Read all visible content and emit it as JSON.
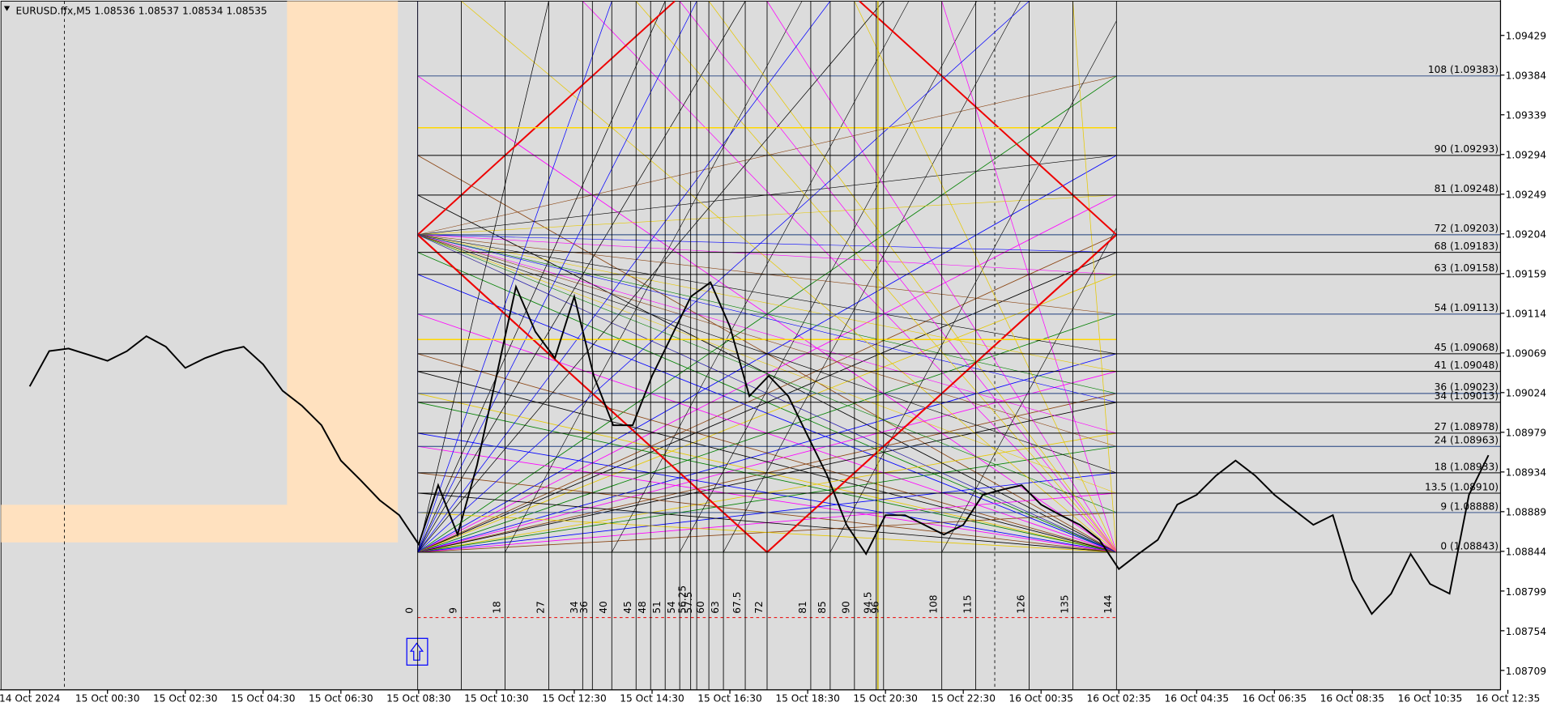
{
  "chart_data": {
    "type": "line",
    "title": "EURUSD.ffx,M5  1.08536 1.08537 1.08534 1.08535",
    "categories": [
      "14 Oct 2024",
      null,
      null,
      null,
      "15 Oct 00:30",
      null,
      null,
      null,
      "15 Oct 02:30",
      null,
      null,
      null,
      "15 Oct 04:30",
      null,
      null,
      null,
      "15 Oct 06:30",
      null,
      null,
      null,
      "15 Oct 08:30",
      null,
      null,
      null,
      "15 Oct 10:30",
      null,
      null,
      null,
      "15 Oct 12:30",
      null,
      null,
      null,
      "15 Oct 14:30",
      null,
      null,
      null,
      "15 Oct 16:30",
      null,
      null,
      null,
      "15 Oct 18:30",
      null,
      null,
      null,
      "15 Oct 20:30",
      null,
      null,
      null,
      "15 Oct 22:30",
      null,
      null,
      null,
      "16 Oct 00:35",
      null,
      null,
      null,
      "16 Oct 02:35",
      null,
      null,
      null,
      "16 Oct 04:35",
      null,
      null,
      null,
      "16 Oct 06:35",
      null,
      null,
      null,
      "16 Oct 08:35",
      null,
      null,
      null,
      "16 Oct 10:35",
      null,
      null,
      null,
      "16 Oct 12:35"
    ],
    "values": [
      1.09031,
      1.09071,
      1.09074,
      1.09067,
      1.0906,
      1.09071,
      1.09088,
      1.09076,
      1.09052,
      1.09063,
      1.09071,
      1.09076,
      1.09056,
      1.09026,
      1.09009,
      1.08987,
      1.08947,
      1.08925,
      1.08902,
      1.08885,
      1.08852,
      1.08919,
      1.08863,
      1.08942,
      1.09043,
      1.09144,
      1.09093,
      1.09063,
      1.09133,
      1.09043,
      1.08987,
      1.08987,
      1.09043,
      1.09088,
      1.09133,
      1.09149,
      1.09099,
      1.0902,
      1.09043,
      1.0902,
      1.08975,
      1.0893,
      1.08874,
      1.08841,
      1.08885,
      1.08885,
      1.08874,
      1.08863,
      1.08874,
      1.08908,
      1.08914,
      1.08919,
      1.08897,
      1.08885,
      1.08874,
      1.08857,
      1.08824,
      1.08841,
      1.08857,
      1.08897,
      1.08908,
      1.0893,
      1.08947,
      1.0893,
      1.08908,
      1.08891,
      1.08874,
      1.08885,
      1.08812,
      1.08773,
      1.08796,
      1.08841,
      1.08807,
      1.08796,
      1.08908,
      1.08953,
      null
    ],
    "color": "#000000",
    "ylim": [
      1.08687,
      1.09469
    ],
    "yticks": [
      1.09429,
      1.09384,
      1.09339,
      1.09294,
      1.09249,
      1.09204,
      1.09159,
      1.09114,
      1.09069,
      1.09024,
      1.08979,
      1.08934,
      1.08889,
      1.08844,
      1.08799,
      1.08754,
      1.08709
    ],
    "levels": [
      {
        "value": 1.09383,
        "label": "108 (1.09383)"
      },
      {
        "value": 1.09293,
        "label": "90 (1.09293)"
      },
      {
        "value": 1.09248,
        "label": "81 (1.09248)"
      },
      {
        "value": 1.09203,
        "label": "72 (1.09203)"
      },
      {
        "value": 1.09183,
        "label": "68 (1.09183)"
      },
      {
        "value": 1.09158,
        "label": "63 (1.09158)"
      },
      {
        "value": 1.09113,
        "label": "54 (1.09113)"
      },
      {
        "value": 1.09068,
        "label": "45 (1.09068)"
      },
      {
        "value": 1.09048,
        "label": "41 (1.09048)"
      },
      {
        "value": 1.09023,
        "label": "36 (1.09023)"
      },
      {
        "value": 1.09013,
        "label": "34 (1.09013)"
      },
      {
        "value": 1.08978,
        "label": "27 (1.08978)"
      },
      {
        "value": 1.08963,
        "label": "24 (1.08963)"
      },
      {
        "value": 1.08933,
        "label": "18 (1.08933)"
      },
      {
        "value": 1.0891,
        "label": "13.5 (1.08910)"
      },
      {
        "value": 1.08888,
        "label": "9 (1.08888)"
      },
      {
        "value": 1.08843,
        "label": "0 (1.08843)"
      }
    ],
    "time_levels": [
      0,
      9,
      18,
      27,
      34,
      36,
      40,
      45,
      48,
      51,
      54,
      56.25,
      57.5,
      60,
      63,
      67.5,
      72,
      81,
      85,
      90,
      94.5,
      96,
      108,
      115,
      126,
      135,
      144
    ]
  }
}
